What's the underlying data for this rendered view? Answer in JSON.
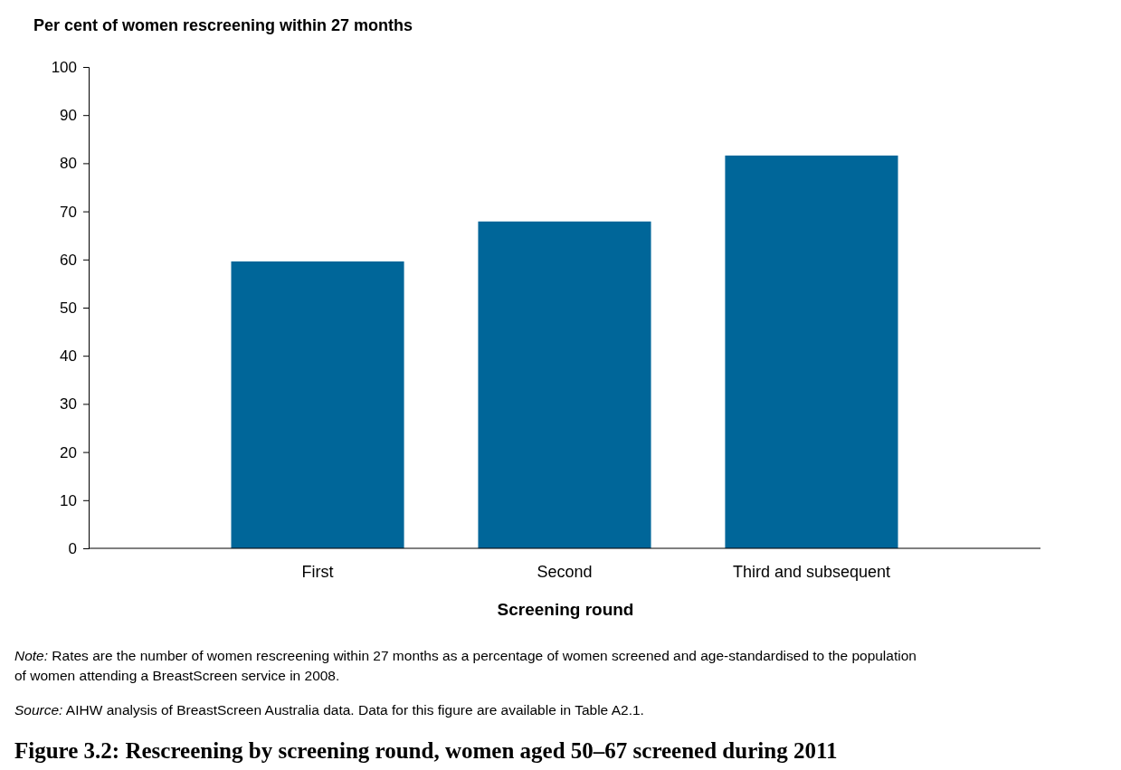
{
  "chart_data": {
    "type": "bar",
    "title": "Figure 3.2: Rescreening by screening round, women aged 50–67 screened during 2011",
    "ylabel": "Per cent of women rescreening within 27 months",
    "xlabel": "Screening round",
    "categories": [
      "First",
      "Second",
      "Third and subsequent"
    ],
    "values": [
      59.6,
      67.9,
      81.6
    ],
    "color": "#006699",
    "ylim": [
      0,
      100
    ],
    "yticks": [
      0,
      10,
      20,
      30,
      40,
      50,
      60,
      70,
      80,
      90,
      100
    ],
    "grid": false,
    "annotations": [
      "Note: Rates are the number of women rescreening within 27 months as a percentage of women screened and age-standardised to the population of women attending a BreastScreen service in 2008.",
      "Source: AIHW analysis of BreastScreen Australia data. Data for this figure are available in Table A2.1."
    ]
  }
}
